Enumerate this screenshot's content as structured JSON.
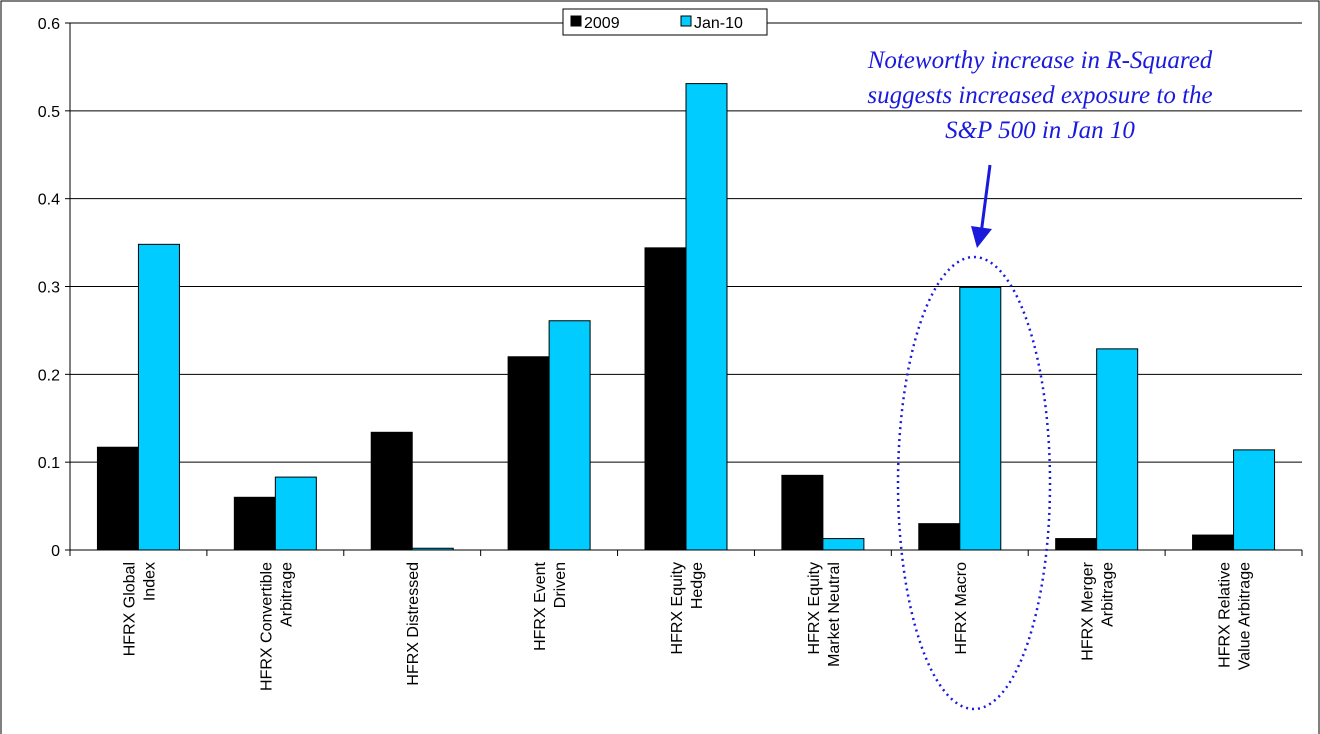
{
  "chart_data": {
    "type": "bar",
    "title": "",
    "xlabel": "",
    "ylabel": "",
    "ylim": [
      0,
      0.6
    ],
    "yticks": [
      "0",
      "0.1",
      "0.2",
      "0.3",
      "0.4",
      "0.5",
      "0.6"
    ],
    "ytick_values": [
      0,
      0.1,
      0.2,
      0.3,
      0.4,
      0.5,
      0.6
    ],
    "grid": true,
    "legend_position": "top-center",
    "categories": [
      [
        "HFRX Global",
        "Index"
      ],
      [
        "HFRX Convertible",
        "Arbitrage"
      ],
      [
        "HFRX Distressed"
      ],
      [
        "HFRX Event",
        "Driven"
      ],
      [
        "HFRX Equity",
        "Hedge"
      ],
      [
        "HFRX Equity",
        "Market Neutral"
      ],
      [
        "HFRX Macro"
      ],
      [
        "HFRX Merger",
        "Arbitrage"
      ],
      [
        "HFRX Relative",
        "Value Arbitrage"
      ]
    ],
    "series": [
      {
        "name": "2009",
        "color": "#000000",
        "values": [
          0.117,
          0.06,
          0.134,
          0.22,
          0.344,
          0.085,
          0.03,
          0.013,
          0.017
        ]
      },
      {
        "name": "Jan-10",
        "color": "#00ccff",
        "values": [
          0.348,
          0.083,
          0.002,
          0.261,
          0.531,
          0.013,
          0.299,
          0.229,
          0.114
        ]
      }
    ],
    "annotation": {
      "lines": [
        "Noteworthy increase in R-Squared",
        "suggests increased exposure to the",
        "S&P 500 in Jan 10"
      ],
      "color": "#1a1adc",
      "highlight_category": "HFRX Macro"
    }
  }
}
